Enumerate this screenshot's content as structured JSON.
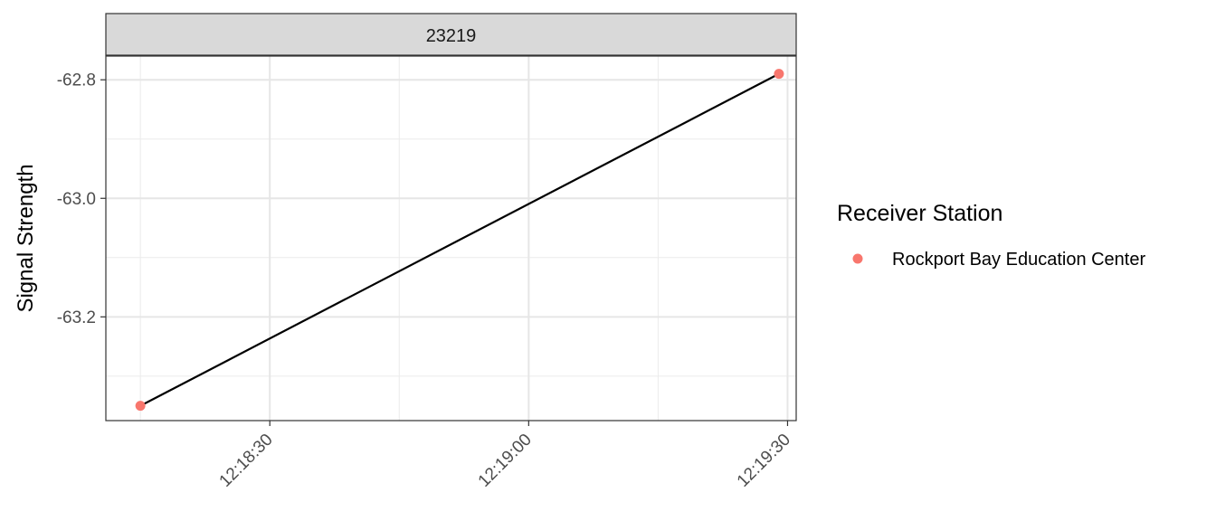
{
  "chart_data": {
    "type": "line",
    "facet_label": "23219",
    "xlabel": "",
    "ylabel": "Signal Strength",
    "x_tick_labels": [
      "12:18:30",
      "12:19:00",
      "12:19:30"
    ],
    "x_ticks": [
      "12:18:30",
      "12:19:00",
      "12:19:30"
    ],
    "x_minor_ticks": [
      "12:18:15",
      "12:18:45",
      "12:19:15"
    ],
    "xlim": [
      "12:18:11",
      "12:19:31"
    ],
    "y_tick_labels": [
      "-62.8",
      "-63.0",
      "-63.2"
    ],
    "y_ticks": [
      -62.8,
      -63.0,
      -63.2
    ],
    "y_minor_ticks": [
      -62.9,
      -63.1,
      -63.3
    ],
    "ylim": [
      -63.375,
      -62.76
    ],
    "series": [
      {
        "name": "Rockport Bay Education Center",
        "color": "#F8766D",
        "line_color": "#000000",
        "points": [
          {
            "x": "12:18:15",
            "y": -63.35
          },
          {
            "x": "12:19:29",
            "y": -62.79
          }
        ]
      }
    ],
    "grid": true,
    "legend": {
      "title": "Receiver Station",
      "placement": "right",
      "entries": [
        "Rockport Bay Education Center"
      ]
    }
  }
}
